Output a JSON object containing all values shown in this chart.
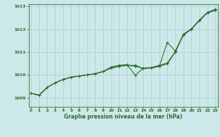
{
  "xlabel": "Graphe pression niveau de la mer (hPa)",
  "bg_color": "#cce8e8",
  "grid_color": "#aacccc",
  "line_color": "#2d6b2d",
  "x_min": 0,
  "x_max": 23,
  "y_min": 1008.6,
  "y_max": 1013.1,
  "yticks": [
    1009,
    1010,
    1011,
    1012,
    1013
  ],
  "xticks": [
    0,
    1,
    2,
    3,
    4,
    5,
    6,
    7,
    8,
    9,
    10,
    11,
    12,
    13,
    14,
    15,
    16,
    17,
    18,
    19,
    20,
    21,
    22,
    23
  ],
  "line_main": [
    1009.2,
    1009.1,
    1009.45,
    1009.65,
    1009.8,
    1009.9,
    1009.95,
    1010.0,
    1010.05,
    1010.15,
    1010.3,
    1010.38,
    1010.42,
    1010.38,
    1010.28,
    1010.3,
    1010.38,
    1010.48,
    1011.0,
    1011.75,
    1012.0,
    1012.38,
    1012.72,
    1012.82
  ],
  "line_upper": [
    1009.2,
    1009.1,
    1009.45,
    1009.65,
    1009.8,
    1009.9,
    1009.95,
    1010.0,
    1010.05,
    1010.15,
    1010.3,
    1010.38,
    1010.42,
    1010.42,
    1010.28,
    1010.3,
    1010.38,
    1011.42,
    1011.05,
    1011.75,
    1012.0,
    1012.38,
    1012.72,
    1012.88
  ],
  "line_trend": [
    1009.2,
    1009.12,
    1009.45,
    1009.65,
    1009.8,
    1009.9,
    1009.95,
    1010.0,
    1010.05,
    1010.15,
    1010.35,
    1010.42,
    1010.45,
    1009.98,
    1010.3,
    1010.32,
    1010.42,
    1010.52,
    1011.02,
    1011.78,
    1012.02,
    1012.4,
    1012.74,
    1012.86
  ]
}
